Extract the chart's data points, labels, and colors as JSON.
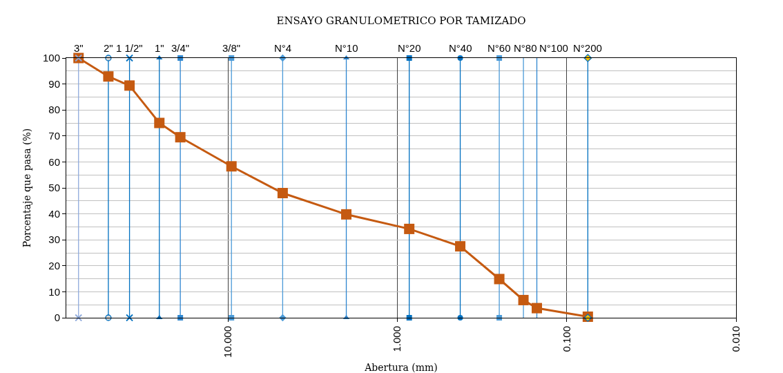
{
  "chart_data": {
    "type": "line",
    "title": "ENSAYO GRANULOMETRICO POR TAMIZADO",
    "xlabel": "Abertura (mm)",
    "ylabel": "Porcentaje que pasa (%)",
    "x": [
      76.2,
      50.8,
      38.1,
      25.4,
      19.1,
      9.53,
      4.75,
      2,
      0.85,
      0.425,
      0.25,
      0.18,
      0.15,
      0.075
    ],
    "series": [
      {
        "color": "#c55a11",
        "values": [
          100,
          92.9,
          89.4,
          75.0,
          69.5,
          58.3,
          48.0,
          39.8,
          34.2,
          27.5,
          14.9,
          6.8,
          3.7,
          0.4
        ]
      },
      {
        "name": "3\"",
        "color": "#8faadc",
        "marker": "cross",
        "x": [
          76.2,
          76.2
        ],
        "values": [
          0,
          100
        ]
      },
      {
        "name": "2\"",
        "color": "#0070c0",
        "marker": "circle",
        "colors": [
          "#d9d9d9",
          "#d9d9d9"
        ],
        "x": [
          50.8,
          50.8
        ],
        "values": [
          0,
          100
        ]
      },
      {
        "name": "1 1/2\"",
        "color": "#0070c0",
        "marker": "cross",
        "x": [
          38.1,
          38.1
        ],
        "values": [
          0,
          100
        ]
      },
      {
        "name": "1\"",
        "color": "#0070c0",
        "marker": "triangle",
        "x": [
          25.4,
          25.4
        ],
        "values": [
          0,
          100
        ]
      },
      {
        "name": "3/4\"",
        "color": "#2e86d0",
        "marker": "square",
        "x": [
          19.1,
          19.1
        ],
        "values": [
          0,
          100
        ]
      },
      {
        "name": "3/8\"",
        "color": "#4a9ad8",
        "marker": "square",
        "x": [
          9.53,
          9.53
        ],
        "values": [
          0,
          100
        ]
      },
      {
        "name": "N°4",
        "color": "#4a9ad8",
        "marker": "diamond",
        "x": [
          4.75,
          4.75
        ],
        "values": [
          0,
          100
        ]
      },
      {
        "name": "N°10",
        "color": "#2e86d0",
        "marker": "triangle",
        "x": [
          2,
          2
        ],
        "values": [
          0,
          100
        ]
      },
      {
        "name": "N°20",
        "color": "#0070c0",
        "marker": "square",
        "x": [
          0.85,
          0.85
        ],
        "values": [
          0,
          100
        ]
      },
      {
        "name": "N°40",
        "color": "#0070c0",
        "marker": "circle",
        "x": [
          0.425,
          0.425
        ],
        "values": [
          0,
          100
        ]
      },
      {
        "name": "N°60",
        "color": "#4a9ad8",
        "marker": "square",
        "x": [
          0.25,
          0.25
        ],
        "values": [
          0,
          100
        ]
      },
      {
        "name": "N°80",
        "color": "#4a9ad8",
        "marker": "none",
        "x": [
          0.18,
          0.18
        ],
        "values": [
          0,
          100
        ]
      },
      {
        "name": "N°100",
        "color": "#2e86d0",
        "marker": "none",
        "x": [
          0.15,
          0.15
        ],
        "values": [
          0,
          100
        ]
      },
      {
        "name": "N°200",
        "color": "#0070c0",
        "marker": "diamond",
        "colors": [
          "#ffc000",
          "#ffc000"
        ],
        "x": [
          0.075,
          0.075
        ],
        "values": [
          0,
          100
        ]
      }
    ],
    "xlim": [
      90,
      0.01
    ],
    "xticks": [
      {
        "value": 10,
        "label": "10.000"
      },
      {
        "value": 1,
        "label": "1.000"
      },
      {
        "value": 0.1,
        "label": "0.100"
      },
      {
        "value": 0.01,
        "label": "0.010"
      }
    ],
    "ylim": [
      0,
      100
    ],
    "yticks": [
      0,
      {
        "value": 5,
        "label": null
      },
      10,
      {
        "value": 15,
        "label": null
      },
      20,
      {
        "value": 25,
        "label": null
      },
      30,
      {
        "value": 35,
        "label": null
      },
      40,
      {
        "value": 45,
        "label": null
      },
      50,
      {
        "value": 55,
        "label": null
      },
      60,
      {
        "value": 65,
        "label": null
      },
      70,
      {
        "value": 75,
        "label": null
      },
      80,
      {
        "value": 85,
        "label": null
      },
      90,
      {
        "value": 95,
        "label": null
      },
      100
    ],
    "log": "x",
    "grid": true,
    "marker": "square",
    "line_style": "solid"
  }
}
